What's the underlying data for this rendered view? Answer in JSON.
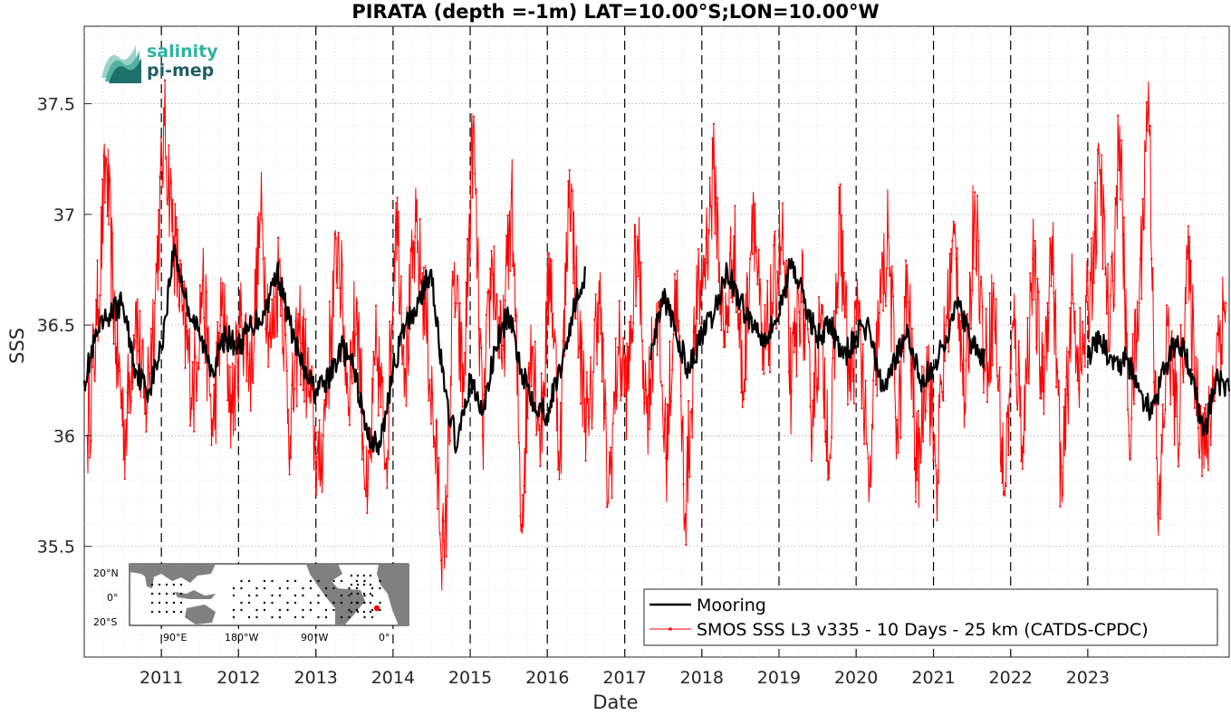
{
  "chart_data": {
    "type": "line",
    "title": "PIRATA (depth =-1m) LAT=10.00°S;LON=10.00°W",
    "xlabel": "Date",
    "ylabel": "SSS",
    "xlim": [
      "2010-01-01",
      "2024-10-31"
    ],
    "ylim": [
      35.0,
      37.85
    ],
    "yticks": [
      35.5,
      36,
      36.5,
      37,
      37.5
    ],
    "ytick_labels": [
      "35.5",
      "36",
      "36.5",
      "37",
      "37.5"
    ],
    "xticks": [
      "2011",
      "2012",
      "2013",
      "2014",
      "2015",
      "2016",
      "2017",
      "2018",
      "2019",
      "2020",
      "2021",
      "2022",
      "2023"
    ],
    "grid": true,
    "legend_position": "bottom-right",
    "series": [
      {
        "name": "Mooring",
        "color": "#000000",
        "x": [
          "2010-01-01",
          "2010-03-01",
          "2010-05-01",
          "2010-07-01",
          "2010-09-01",
          "2010-11-01",
          "2011-01-01",
          "2011-03-01",
          "2011-05-01",
          "2011-07-01",
          "2011-09-01",
          "2011-11-01",
          "2012-01-01",
          "2012-03-01",
          "2012-05-01",
          "2012-07-01",
          "2012-09-01",
          "2012-11-01",
          "2013-01-01",
          "2013-03-01",
          "2013-05-01",
          "2013-07-01",
          "2013-09-01",
          "2013-11-01",
          "2014-01-01",
          "2014-03-01",
          "2014-05-01",
          "2014-07-01",
          "2014-09-01",
          "2014-11-01",
          "2015-01-01",
          "2015-03-01",
          "2015-05-01",
          "2015-07-01",
          "2015-09-01",
          "2015-11-01",
          "2016-01-01",
          "2016-03-01",
          "2016-05-01",
          "2016-07-01",
          "2017-05-01",
          "2017-07-01",
          "2017-09-01",
          "2017-11-01",
          "2018-01-01",
          "2018-03-01",
          "2018-05-01",
          "2018-07-01",
          "2018-09-01",
          "2018-11-01",
          "2019-01-01",
          "2019-03-01",
          "2019-05-01",
          "2019-07-01",
          "2019-09-01",
          "2019-11-01",
          "2020-01-01",
          "2020-03-01",
          "2020-05-01",
          "2020-07-01",
          "2020-09-01",
          "2020-11-01",
          "2021-01-01",
          "2021-03-01",
          "2021-05-01",
          "2021-07-01",
          "2021-09-01",
          "2023-01-01",
          "2023-03-01",
          "2023-05-01",
          "2023-07-01",
          "2023-09-01",
          "2023-11-01",
          "2024-01-01",
          "2024-03-01",
          "2024-05-01",
          "2024-07-01",
          "2024-09-01",
          "2024-10-31"
        ],
        "y": [
          36.25,
          36.45,
          36.55,
          36.6,
          36.3,
          36.2,
          36.4,
          36.85,
          36.6,
          36.45,
          36.3,
          36.45,
          36.4,
          36.5,
          36.55,
          36.75,
          36.5,
          36.3,
          36.2,
          36.25,
          36.4,
          36.3,
          36.0,
          35.95,
          36.3,
          36.5,
          36.6,
          36.75,
          36.2,
          35.95,
          36.25,
          36.1,
          36.4,
          36.55,
          36.3,
          36.15,
          36.1,
          36.3,
          36.55,
          36.75,
          36.35,
          36.65,
          36.45,
          36.3,
          36.45,
          36.55,
          36.75,
          36.6,
          36.5,
          36.45,
          36.55,
          36.8,
          36.6,
          36.45,
          36.5,
          36.35,
          36.45,
          36.5,
          36.2,
          36.35,
          36.45,
          36.25,
          36.3,
          36.45,
          36.6,
          36.4,
          36.35,
          36.35,
          36.45,
          36.3,
          36.35,
          36.2,
          36.1,
          36.3,
          36.45,
          36.3,
          36.0,
          36.25,
          36.2
        ]
      },
      {
        "name": "SMOS SSS L3 v335 - 10 Days - 25 km (CATDS-CPDC)",
        "color": "#ff0000",
        "x": [
          "2010-01-15",
          "2010-03-01",
          "2010-04-15",
          "2010-06-01",
          "2010-07-15",
          "2010-09-01",
          "2010-10-15",
          "2010-12-01",
          "2011-01-15",
          "2011-03-01",
          "2011-04-15",
          "2011-06-01",
          "2011-07-15",
          "2011-09-01",
          "2011-10-15",
          "2011-12-01",
          "2012-01-15",
          "2012-03-01",
          "2012-04-15",
          "2012-06-01",
          "2012-07-15",
          "2012-09-01",
          "2012-10-15",
          "2012-12-01",
          "2013-01-15",
          "2013-03-01",
          "2013-04-15",
          "2013-06-01",
          "2013-07-15",
          "2013-09-01",
          "2013-10-15",
          "2013-12-01",
          "2014-01-15",
          "2014-03-01",
          "2014-04-15",
          "2014-06-01",
          "2014-07-15",
          "2014-09-01",
          "2014-10-15",
          "2014-12-01",
          "2015-01-15",
          "2015-03-01",
          "2015-04-15",
          "2015-06-01",
          "2015-07-15",
          "2015-09-01",
          "2015-10-15",
          "2015-12-01",
          "2016-01-15",
          "2016-03-01",
          "2016-04-15",
          "2016-06-01",
          "2016-07-15",
          "2016-09-01",
          "2016-10-15",
          "2016-12-01",
          "2017-01-15",
          "2017-03-01",
          "2017-04-15",
          "2017-06-01",
          "2017-07-15",
          "2017-09-01",
          "2017-10-15",
          "2017-12-01",
          "2018-01-15",
          "2018-03-01",
          "2018-04-15",
          "2018-06-01",
          "2018-07-15",
          "2018-09-01",
          "2018-10-15",
          "2018-12-01",
          "2019-01-15",
          "2019-03-01",
          "2019-04-15",
          "2019-06-01",
          "2019-07-15",
          "2019-09-01",
          "2019-10-15",
          "2019-12-01",
          "2020-01-15",
          "2020-03-01",
          "2020-04-15",
          "2020-06-01",
          "2020-07-15",
          "2020-09-01",
          "2020-10-15",
          "2020-12-01",
          "2021-01-15",
          "2021-03-01",
          "2021-04-15",
          "2021-06-01",
          "2021-07-15",
          "2021-09-01",
          "2021-10-15",
          "2021-12-01",
          "2022-01-15",
          "2022-03-01",
          "2022-04-15",
          "2022-06-01",
          "2022-07-15",
          "2022-09-01",
          "2022-10-15",
          "2022-12-01",
          "2023-01-15",
          "2023-03-01",
          "2023-04-15",
          "2023-06-01",
          "2023-07-15",
          "2023-09-01",
          "2023-10-15",
          "2023-12-01",
          "2024-01-15",
          "2024-03-01",
          "2024-04-15",
          "2024-06-01",
          "2024-07-15",
          "2024-09-01",
          "2024-10-15"
        ],
        "y": [
          36.0,
          36.5,
          37.25,
          36.4,
          36.0,
          36.6,
          36.1,
          36.6,
          37.4,
          36.9,
          36.5,
          36.2,
          36.7,
          36.0,
          36.6,
          36.1,
          36.55,
          36.3,
          37.0,
          36.4,
          36.8,
          36.0,
          36.5,
          36.2,
          35.8,
          36.3,
          36.9,
          36.2,
          36.6,
          35.65,
          36.4,
          35.9,
          37.05,
          36.3,
          36.9,
          36.6,
          36.0,
          35.4,
          36.7,
          36.2,
          37.4,
          36.0,
          36.8,
          36.3,
          37.1,
          35.6,
          36.5,
          36.0,
          36.8,
          35.9,
          37.2,
          36.4,
          36.0,
          36.7,
          35.7,
          36.4,
          36.2,
          36.9,
          36.1,
          36.6,
          35.9,
          36.7,
          35.65,
          36.5,
          36.8,
          37.2,
          36.4,
          36.9,
          36.2,
          37.1,
          36.3,
          36.6,
          36.9,
          36.2,
          36.7,
          36.1,
          36.5,
          35.9,
          37.0,
          36.2,
          36.6,
          35.7,
          36.5,
          36.9,
          36.0,
          36.7,
          35.8,
          36.4,
          35.8,
          36.5,
          36.9,
          36.1,
          37.1,
          36.3,
          36.6,
          35.75,
          36.5,
          36.0,
          36.8,
          36.2,
          36.9,
          35.7,
          36.6,
          36.3,
          36.7,
          37.2,
          36.4,
          37.4,
          36.0,
          36.6,
          37.6,
          35.55,
          36.5,
          36.0,
          36.8,
          36.2,
          35.9,
          36.4,
          36.6
        ]
      }
    ]
  },
  "legend": {
    "mooring": "Mooring",
    "smos": "SMOS SSS L3 v335 - 10 Days - 25 km (CATDS-CPDC)"
  },
  "logo": {
    "line1": "salinity",
    "line2": "pi-mep"
  },
  "inset_map": {
    "lat_labels": [
      "20°N",
      "0°",
      "20°S"
    ],
    "lon_labels": [
      "90°E",
      "180°W",
      "90°W",
      "0°"
    ],
    "marker_color": "#ff0000"
  },
  "colors": {
    "mooring": "#000000",
    "smos": "#ff0000",
    "land": "#808080"
  }
}
